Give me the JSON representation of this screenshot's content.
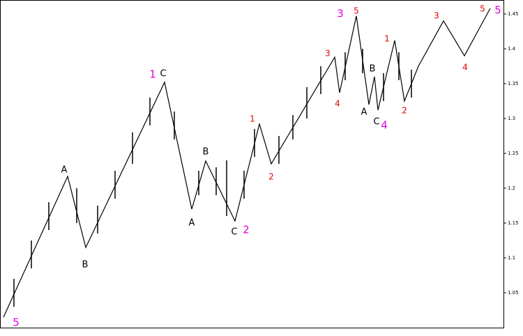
{
  "chart_data": {
    "type": "line",
    "ylim": [
      1.0,
      1.47
    ],
    "yticks": [
      1.05,
      1.1,
      1.15,
      1.2,
      1.25,
      1.3,
      1.35,
      1.4,
      1.45
    ],
    "xlim": [
      0,
      722
    ],
    "color": "#000000",
    "wave": {
      "x": [
        5,
        97,
        123,
        236,
        275,
        295,
        337,
        372,
        389,
        480,
        487,
        511,
        529,
        537,
        542,
        566,
        580,
        600,
        636,
        666,
        703
      ],
      "values": [
        1.015,
        1.217,
        1.115,
        1.352,
        1.17,
        1.239,
        1.153,
        1.292,
        1.235,
        1.388,
        1.337,
        1.447,
        1.32,
        1.36,
        1.312,
        1.412,
        1.325,
        1.375,
        1.44,
        1.39,
        1.458
      ]
    },
    "bars": {
      "x": [
        20,
        45,
        70,
        110,
        140,
        165,
        190,
        215,
        250,
        285,
        310,
        325,
        350,
        365,
        400,
        420,
        440,
        460,
        495,
        520,
        550,
        572,
        590
      ],
      "low": [
        1.03,
        1.085,
        1.14,
        1.15,
        1.135,
        1.185,
        1.235,
        1.29,
        1.27,
        1.19,
        1.19,
        1.16,
        1.185,
        1.245,
        1.235,
        1.27,
        1.3,
        1.335,
        1.355,
        1.365,
        1.325,
        1.355,
        1.33
      ],
      "high": [
        1.07,
        1.125,
        1.18,
        1.2,
        1.175,
        1.225,
        1.28,
        1.33,
        1.31,
        1.225,
        1.23,
        1.24,
        1.225,
        1.285,
        1.275,
        1.305,
        1.345,
        1.375,
        1.395,
        1.4,
        1.365,
        1.395,
        1.37
      ]
    },
    "annotations": [
      "5",
      "A",
      "B",
      "1",
      "C",
      "B",
      "A",
      "C",
      "2",
      "1",
      "2",
      "3",
      "4",
      "3",
      "5",
      "B",
      "A",
      "1",
      "C",
      "4",
      "2",
      "3",
      "4",
      "5",
      "5"
    ]
  }
}
